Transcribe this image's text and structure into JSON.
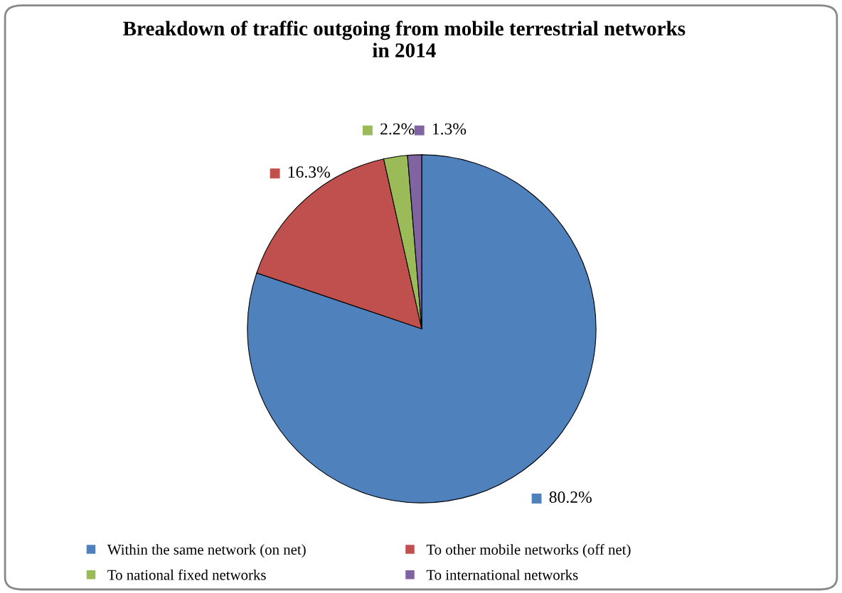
{
  "chart_data": {
    "type": "pie",
    "title": "Breakdown of traffic outgoing from mobile terrestrial networks\nin 2014",
    "categories": [
      "Within the same network (on net)",
      "To other mobile networks (off net)",
      "To national fixed networks",
      "To international networks"
    ],
    "values": [
      80.2,
      16.3,
      2.2,
      1.3
    ],
    "colors": [
      "#4f81bd",
      "#c0504d",
      "#9bbb59",
      "#8064a2"
    ],
    "value_labels": [
      "80.2%",
      "16.3%",
      "2.2%",
      "1.3%"
    ],
    "legend": "bottom"
  }
}
